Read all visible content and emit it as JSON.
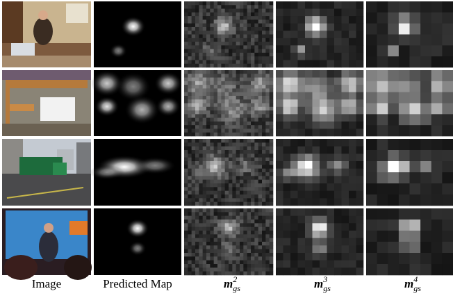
{
  "figure": {
    "columns": [
      {
        "label": "Image"
      },
      {
        "label": "Predicted Map"
      },
      {
        "label": {
          "base": "m",
          "sub": "gs",
          "sup": "2"
        }
      },
      {
        "label": {
          "base": "m",
          "sub": "gs",
          "sup": "3"
        }
      },
      {
        "label": {
          "base": "m",
          "sub": "gs",
          "sup": "4"
        }
      }
    ]
  }
}
